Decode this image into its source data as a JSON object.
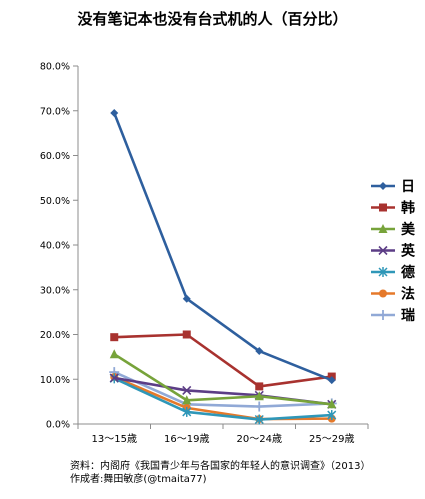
{
  "chart_data": {
    "type": "line",
    "title": "没有笔记本也没有台式机的人（百分比）",
    "categories": [
      "13～15歳",
      "16～19歳",
      "20～24歳",
      "25～29歳"
    ],
    "ylim": [
      0,
      80
    ],
    "y_ticks": [
      "0.0%",
      "10.0%",
      "20.0%",
      "30.0%",
      "40.0%",
      "50.0%",
      "60.0%",
      "70.0%",
      "80.0%"
    ],
    "grid": false,
    "legend_position": "right",
    "series": [
      {
        "name": "日",
        "values": [
          69.5,
          28.0,
          16.3,
          9.8
        ],
        "color": "#2e5f9e",
        "marker": "diamond"
      },
      {
        "name": "韩",
        "values": [
          19.4,
          20.0,
          8.4,
          10.6
        ],
        "color": "#a8322f",
        "marker": "square"
      },
      {
        "name": "美",
        "values": [
          15.6,
          5.3,
          6.2,
          4.4
        ],
        "color": "#77a33a",
        "marker": "triangle"
      },
      {
        "name": "英",
        "values": [
          10.3,
          7.5,
          6.4,
          4.4
        ],
        "color": "#5c3d86",
        "marker": "x"
      },
      {
        "name": "德",
        "values": [
          10.2,
          2.7,
          1.0,
          2.0
        ],
        "color": "#2f97b8",
        "marker": "asterisk"
      },
      {
        "name": "法",
        "values": [
          10.5,
          3.6,
          1.1,
          1.2
        ],
        "color": "#e5792a",
        "marker": "circle"
      },
      {
        "name": "瑞",
        "values": [
          11.6,
          4.4,
          3.9,
          4.6
        ],
        "color": "#91a9d6",
        "marker": "plus"
      }
    ]
  },
  "source": {
    "line1": "资料：内阁府《我国青少年与各国家的年轻人的意识调查》（2013）",
    "line2": "作成者:舞田敏彦(@tmaita77)"
  }
}
